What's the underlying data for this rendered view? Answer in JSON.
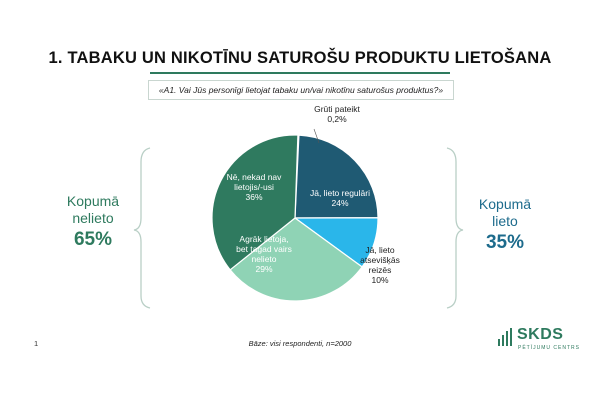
{
  "slide": {
    "title": "1. TABAKU UN NIKOTĪNU SATUROŠU PRODUKTU LIETOŠANA",
    "question": "«A1. Vai Jūs personīgi lietojat tabaku un/vai nikotīnu saturošus produktus?»",
    "page_number": "1",
    "base_note": "Bāze: visi respondenti, n=2000",
    "logo_text": "SKDS",
    "logo_subtext": "PĒTĪJUMU CENTRS"
  },
  "summary": {
    "left": {
      "label_line1": "Kopumā",
      "label_line2": "nelieto",
      "value": "65%"
    },
    "right": {
      "label_line1": "Kopumā",
      "label_line2": "lieto",
      "value": "35%"
    }
  },
  "chart_data": {
    "type": "pie",
    "categories": [
      "Grūti pateikt",
      "Jā, lieto regulāri",
      "Jā, lieto atsevišķās reizēs",
      "Agrāk lietoja, bet tagad vairs nelieto",
      "Nē, nekad nav lietojis/-usi"
    ],
    "values": [
      0.2,
      24,
      10,
      29,
      36
    ],
    "value_labels": [
      "0,2%",
      "24%",
      "10%",
      "29%",
      "36%"
    ],
    "label_lines": [
      [
        "Grūti pateikt",
        "0,2%"
      ],
      [
        "Jā, lieto regulāri",
        "24%"
      ],
      [
        "Jā, lieto",
        "atsevišķās",
        "reizēs",
        "10%"
      ],
      [
        "Agrāk lietoja,",
        "bet tagad vairs",
        "nelieto",
        "29%"
      ],
      [
        "Nē, nekad nav",
        "lietojis/-usi",
        "36%"
      ]
    ],
    "colors": [
      "#9aa7a3",
      "#1f5a73",
      "#2ab6ea",
      "#8fd3b5",
      "#2f7a5f"
    ],
    "label_colors": [
      "#222222",
      "#ffffff",
      "#222222",
      "#ffffff",
      "#ffffff"
    ]
  }
}
